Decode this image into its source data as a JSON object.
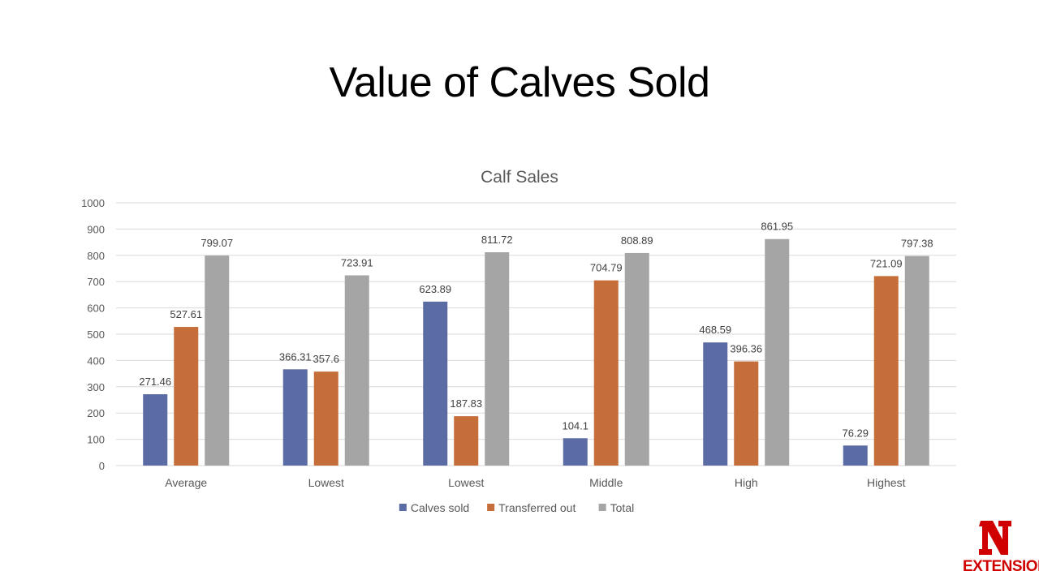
{
  "slide": {
    "title": "Value of Calves Sold"
  },
  "chart_data": {
    "type": "bar",
    "title": "Calf Sales",
    "xlabel": "",
    "ylabel": "",
    "categories": [
      "Average",
      "Lowest",
      "Lowest",
      "Middle",
      "High",
      "Highest"
    ],
    "series": [
      {
        "name": "Calves sold",
        "color": "#5b6ba3",
        "values": [
          271.46,
          366.31,
          623.89,
          104.1,
          468.59,
          76.29
        ]
      },
      {
        "name": "Transferred out",
        "color": "#c56e39",
        "values": [
          527.61,
          357.6,
          187.83,
          704.79,
          396.36,
          721.09
        ]
      },
      {
        "name": "Total",
        "color": "#a5a5a5",
        "values": [
          799.07,
          723.91,
          811.72,
          808.89,
          861.95,
          797.38
        ]
      }
    ],
    "ylim": [
      0,
      1000
    ],
    "yticks": [
      0,
      100,
      200,
      300,
      400,
      500,
      600,
      700,
      800,
      900,
      1000
    ],
    "grid": true,
    "legend": "bottom"
  },
  "logo": {
    "icon": "nebraska-n-logo-icon",
    "text": "EXTENSION",
    "color": "#d00000"
  }
}
